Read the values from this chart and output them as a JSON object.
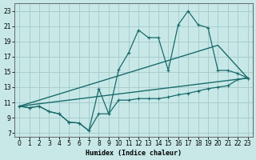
{
  "xlabel": "Humidex (Indice chaleur)",
  "xlim": [
    -0.5,
    23.5
  ],
  "ylim": [
    6.5,
    24.0
  ],
  "xticks": [
    0,
    1,
    2,
    3,
    4,
    5,
    6,
    7,
    8,
    9,
    10,
    11,
    12,
    13,
    14,
    15,
    16,
    17,
    18,
    19,
    20,
    21,
    22,
    23
  ],
  "yticks": [
    7,
    9,
    11,
    13,
    15,
    17,
    19,
    21,
    23
  ],
  "bg_color": "#c8e8e8",
  "grid_color": "#a8cccc",
  "line_color": "#1a6b6b",
  "line1_x": [
    0,
    1,
    2,
    3,
    4,
    5,
    6,
    7,
    8,
    9,
    10,
    11,
    12,
    13,
    14,
    15,
    16,
    17,
    18,
    19,
    20,
    21,
    22,
    23
  ],
  "line1_y": [
    10.5,
    10.3,
    10.5,
    9.8,
    9.5,
    8.4,
    8.3,
    7.3,
    9.5,
    9.5,
    11.3,
    11.3,
    11.5,
    11.5,
    11.5,
    11.7,
    12.0,
    12.2,
    12.5,
    12.8,
    13.0,
    13.2,
    14.0,
    14.2
  ],
  "line2_x": [
    0,
    1,
    2,
    3,
    4,
    5,
    6,
    7,
    8,
    9,
    10,
    11,
    12,
    13,
    14,
    15,
    16,
    17,
    18,
    19,
    20,
    21,
    22,
    23
  ],
  "line2_y": [
    10.5,
    10.3,
    10.5,
    9.8,
    9.5,
    8.4,
    8.3,
    7.3,
    12.8,
    9.5,
    15.3,
    17.5,
    20.5,
    19.5,
    19.5,
    15.2,
    21.2,
    23.0,
    21.2,
    20.8,
    15.2,
    15.2,
    14.8,
    14.2
  ],
  "line3_x": [
    0,
    23
  ],
  "line3_y": [
    10.5,
    14.2
  ],
  "line4_x": [
    0,
    20,
    23
  ],
  "line4_y": [
    10.5,
    18.5,
    14.2
  ]
}
